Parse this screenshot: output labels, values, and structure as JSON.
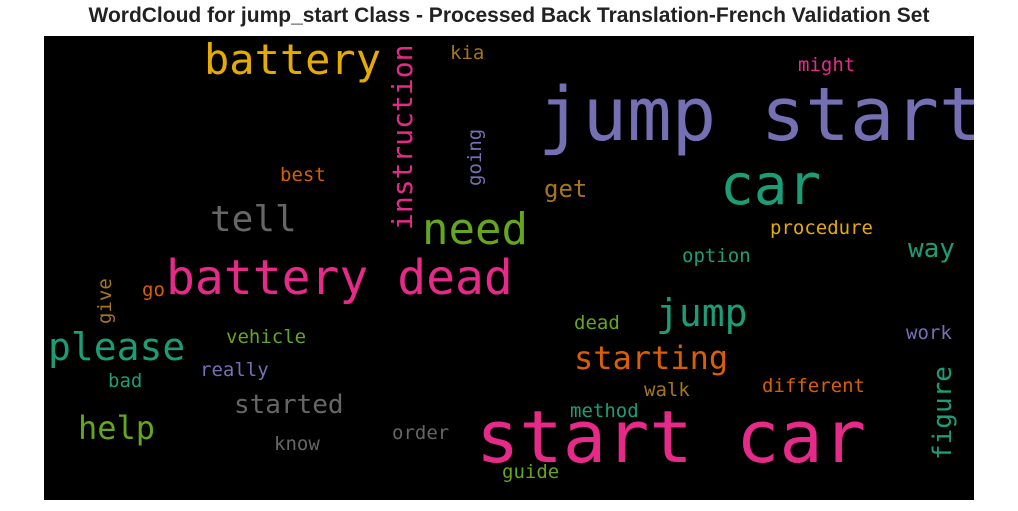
{
  "title": "WordCloud for jump_start Class - Processed Back Translation-French Validation Set",
  "chart_data": {
    "type": "wordcloud",
    "background": "#000000",
    "words": [
      {
        "text": "jump start",
        "color": "#7570b3"
      },
      {
        "text": "start car",
        "color": "#e7298a"
      },
      {
        "text": "car",
        "color": "#1b9e77"
      },
      {
        "text": "battery dead",
        "color": "#e7298a"
      },
      {
        "text": "battery",
        "color": "#e6ab02"
      },
      {
        "text": "need",
        "color": "#66a61e"
      },
      {
        "text": "please",
        "color": "#1b9e77"
      },
      {
        "text": "jump",
        "color": "#1b9e77"
      },
      {
        "text": "tell",
        "color": "#666666"
      },
      {
        "text": "instruction",
        "color": "#e7298a"
      },
      {
        "text": "starting",
        "color": "#d95f02"
      },
      {
        "text": "help",
        "color": "#66a61e"
      },
      {
        "text": "started",
        "color": "#666666"
      },
      {
        "text": "figure",
        "color": "#1b9e77"
      },
      {
        "text": "way",
        "color": "#1b9e77"
      },
      {
        "text": "get",
        "color": "#a6761d"
      },
      {
        "text": "procedure",
        "color": "#e6ab02"
      },
      {
        "text": "option",
        "color": "#1b9e77"
      },
      {
        "text": "going",
        "color": "#7570b3"
      },
      {
        "text": "best",
        "color": "#d95f02"
      },
      {
        "text": "kia",
        "color": "#a6761d"
      },
      {
        "text": "might",
        "color": "#e7298a"
      },
      {
        "text": "vehicle",
        "color": "#66a61e"
      },
      {
        "text": "really",
        "color": "#7570b3"
      },
      {
        "text": "dead",
        "color": "#66a61e"
      },
      {
        "text": "work",
        "color": "#7570b3"
      },
      {
        "text": "different",
        "color": "#d95f02"
      },
      {
        "text": "walk",
        "color": "#a6761d"
      },
      {
        "text": "method",
        "color": "#1b9e77"
      },
      {
        "text": "order",
        "color": "#666666"
      },
      {
        "text": "know",
        "color": "#666666"
      },
      {
        "text": "guide",
        "color": "#66a61e"
      },
      {
        "text": "bad",
        "color": "#1b9e77"
      },
      {
        "text": "go",
        "color": "#d95f02"
      },
      {
        "text": "give",
        "color": "#a6761d"
      }
    ]
  }
}
